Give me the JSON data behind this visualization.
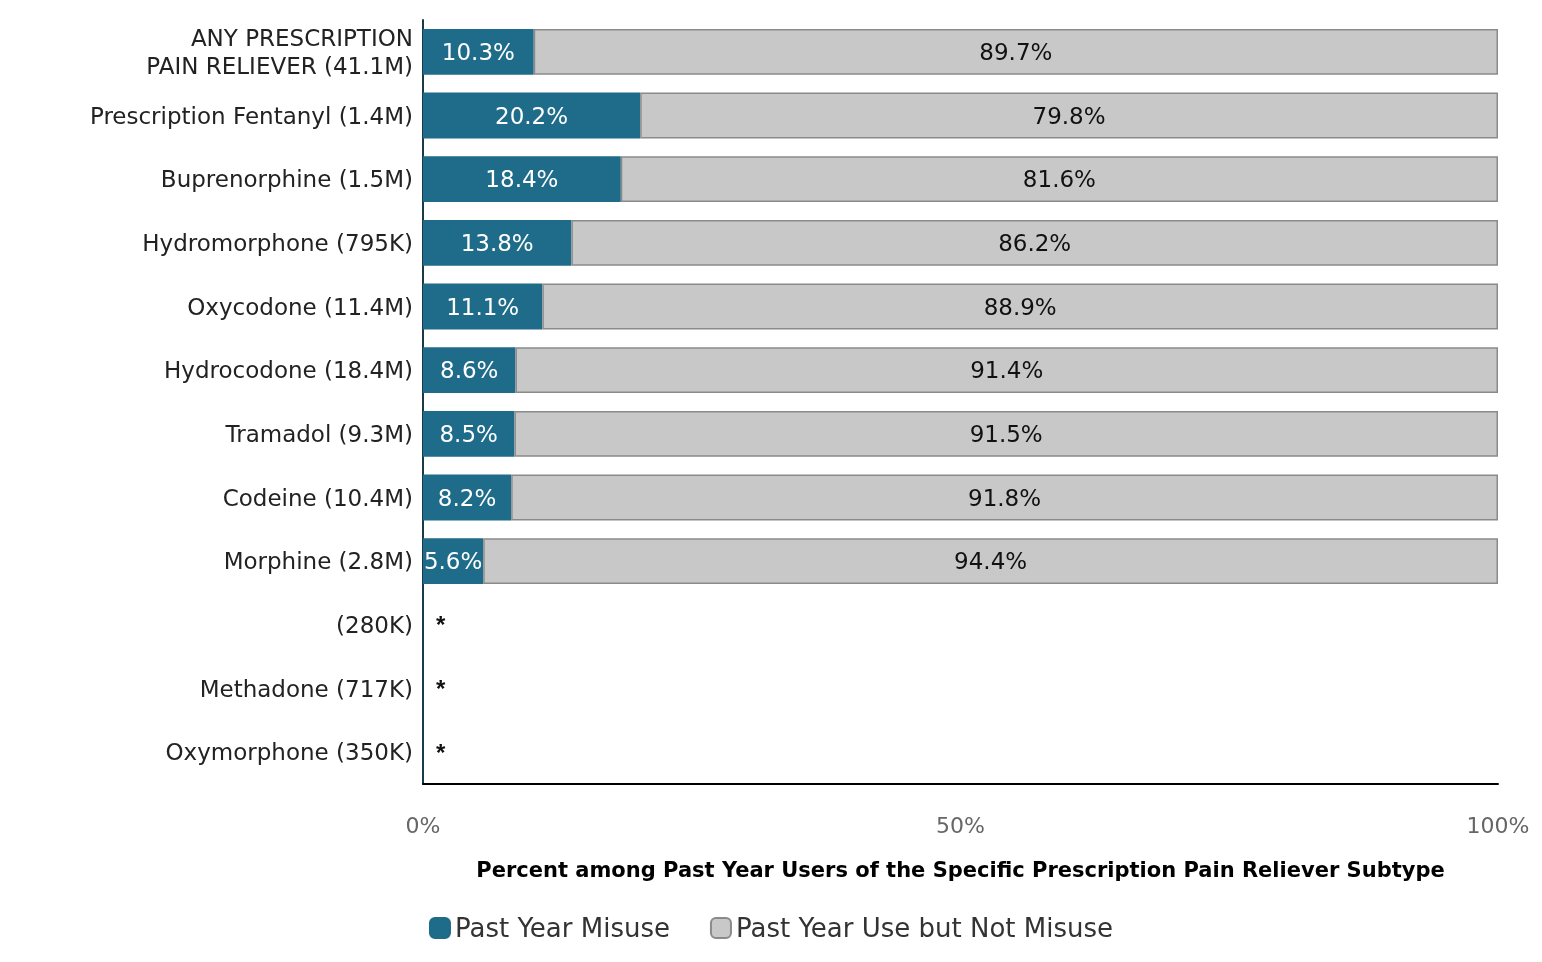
{
  "chart_data": {
    "type": "bar",
    "orientation": "horizontal",
    "stacked": true,
    "xlabel": "Percent among Past Year Users of the Specific Prescription Pain Reliever Subtype",
    "categories": [
      "ANY PRESCRIPTION PAIN RELIEVER (41.1M)",
      "Prescription Fentanyl (1.4M)",
      "Buprenorphine (1.5M)",
      "Hydromorphone (795K)",
      "Oxycodone (11.4M)",
      "Hydrocodone (18.4M)",
      "Tramadol (9.3M)",
      "Codeine (10.4M)",
      "Morphine (2.8M)",
      "(280K)",
      "Methadone (717K)",
      "Oxymorphone (350K)"
    ],
    "series": [
      {
        "name": "Past Year Misuse",
        "color": "#1f6b8a",
        "values": [
          10.3,
          20.2,
          18.4,
          13.8,
          11.1,
          8.6,
          8.5,
          8.2,
          5.6,
          null,
          null,
          null
        ],
        "value_labels": [
          "10.3%",
          "20.2%",
          "18.4%",
          "13.8%",
          "11.1%",
          "8.6%",
          "8.5%",
          "8.2%",
          "5.6%",
          "*",
          "*",
          "*"
        ]
      },
      {
        "name": "Past Year Use but Not Misuse",
        "color": "#c8c8c8",
        "values": [
          89.7,
          79.8,
          81.6,
          86.2,
          88.9,
          91.4,
          91.5,
          91.8,
          94.4,
          null,
          null,
          null
        ],
        "value_labels": [
          "89.7%",
          "79.8%",
          "81.6%",
          "86.2%",
          "88.9%",
          "91.4%",
          "91.5%",
          "91.8%",
          "94.4%",
          null,
          null,
          null
        ]
      }
    ],
    "xlim": [
      0,
      100
    ],
    "xticks": [
      {
        "value": 0,
        "label": "0%"
      },
      {
        "value": 50,
        "label": "50%"
      },
      {
        "value": 100,
        "label": "100%"
      }
    ],
    "grid": false,
    "legend": "bottom"
  }
}
